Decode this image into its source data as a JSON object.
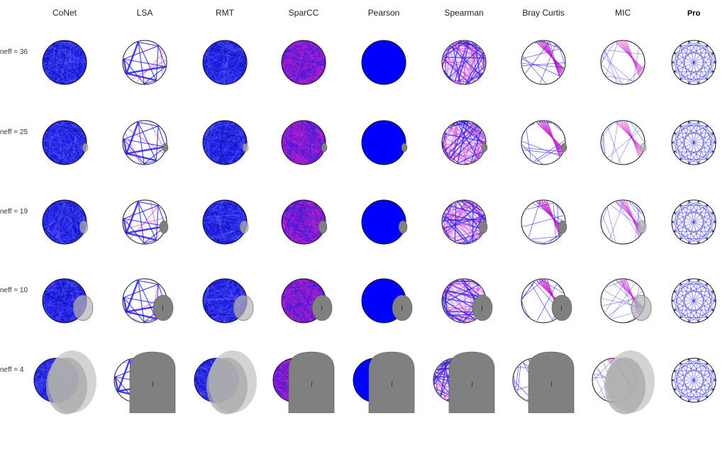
{
  "columns": [
    {
      "label": "CoNet",
      "style": "dense-blue",
      "bold": false
    },
    {
      "label": "LSA",
      "style": "sparse-star",
      "bold": false
    },
    {
      "label": "RMT",
      "style": "dense-blue",
      "bold": false
    },
    {
      "label": "SparCC",
      "style": "dense-magenta",
      "bold": false
    },
    {
      "label": "Pearson",
      "style": "solid-blue",
      "bold": false
    },
    {
      "label": "Spearman",
      "style": "mixed",
      "bold": false
    },
    {
      "label": "Bray Curtis",
      "style": "sparse-magenta",
      "bold": false
    },
    {
      "label": "MIC",
      "style": "sparse-magenta-light",
      "bold": false
    },
    {
      "label": "Pro",
      "style": "outline-web",
      "bold": true
    }
  ],
  "rows": [
    {
      "label": "neff = 36",
      "overlay": "none"
    },
    {
      "label": "neff = 25",
      "overlay": "tiny"
    },
    {
      "label": "neff = 19",
      "overlay": "small"
    },
    {
      "label": "neff = 10",
      "overlay": "medium"
    },
    {
      "label": "neff = 4",
      "overlay": "large"
    }
  ],
  "colors": {
    "blue": "#1f1fe6",
    "solid_blue": "#0000ff",
    "magenta": "#cc22cc",
    "grey": "#808080",
    "grey_light": "#b4b4b4",
    "outline": "#111111",
    "background": "#ffffff"
  }
}
